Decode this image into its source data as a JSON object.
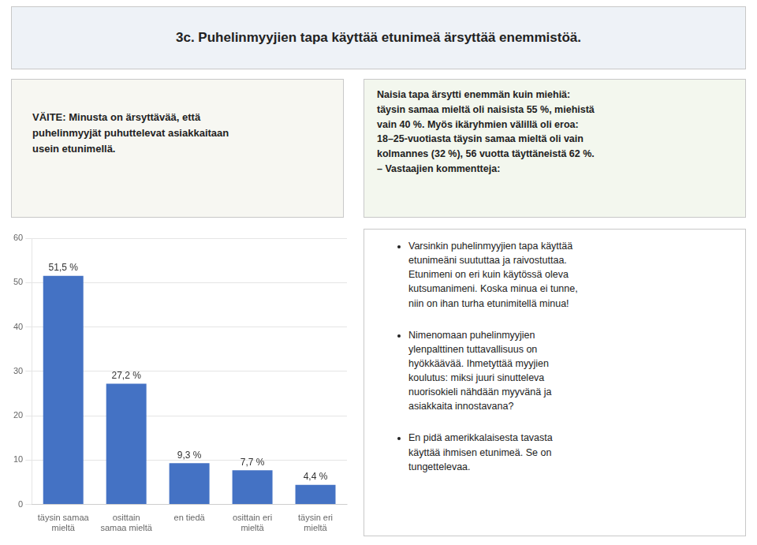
{
  "chart_data": {
    "type": "bar",
    "title": "3c. Puhelinmyyjien tapa käyttää etunimeä ärsyttää enemmistöä.",
    "categories": [
      "täysin samaa\nmieltä",
      "osittain\nsamaa mieltä",
      "en tiedä",
      "osittain eri\nmieltä",
      "täysin eri\nmieltä"
    ],
    "values": [
      51.5,
      27.2,
      9.3,
      7.7,
      4.4
    ],
    "value_labels": [
      "51,5 %",
      "27,2 %",
      "9,3 %",
      "7,7 %",
      "4,4 %"
    ],
    "data_labels": true,
    "color": "#4472c4",
    "ylim": [
      0,
      60
    ],
    "yticks": [
      0,
      10,
      20,
      30,
      40,
      50,
      60
    ],
    "grid": true,
    "annotations": [
      "VÄITE: Minusta on ärsyttävää, että\npuhelinmyyjät puhuttelevat asiakkaitaan\nusein etunimellä.",
      "Naisia tapa ärsytti enemmän kuin miehiä:\ntäysin samaa mieltä oli naisista 55 %, miehistä\nvain 40 %. Myös ikäryhmien välillä oli eroa:\n18–25-vuotiasta täysin samaa mieltä oli vain\nkolmannes (32 %), 56 vuotta täyttäneistä 62 %.\n– Vastaajien kommentteja:",
      "Varsinkin puhelinmyyjien tapa käyttää\netunimeäni suututtaa ja raivostuttaa.\nEtunimeni on eri kuin käytössä oleva\nkutsumanimeni. Koska minua ei tunne,\nniin on ihan turha etunimitellä minua!",
      "Nimenomaan puhelinmyyjien\nylenpalttinen tuttavallisuus on\nhyökkäävää. Ihmetyttää myyjien\nkoulutus: miksi juuri sinutteleva\nnuorisokieli nähdään myyvänä ja\nasiakkaita innostavana?",
      "En pidä amerikkalaisesta tavasta\nkäyttää ihmisen etunimeä. Se on\ntungettelevaa."
    ]
  }
}
